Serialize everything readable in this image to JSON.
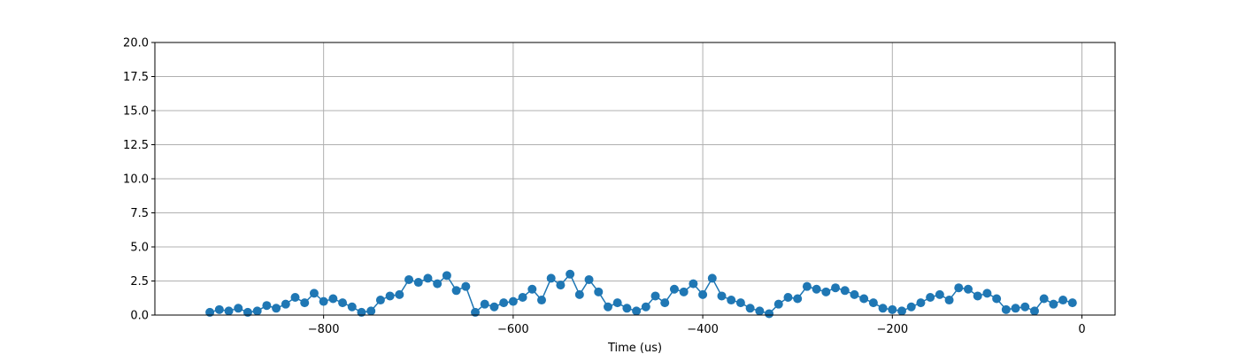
{
  "chart_data": {
    "type": "scatter",
    "title": "",
    "xlabel": "Time (us)",
    "ylabel": "",
    "xlim": [
      -978,
      35
    ],
    "ylim": [
      0,
      20
    ],
    "xticks": [
      -800,
      -600,
      -400,
      -200,
      0
    ],
    "xtick_labels": [
      "−800",
      "−600",
      "−400",
      "−200",
      "0"
    ],
    "yticks": [
      0,
      2.5,
      5,
      7.5,
      10,
      12.5,
      15,
      17.5,
      20
    ],
    "ytick_labels": [
      "0.0",
      "2.5",
      "5.0",
      "7.5",
      "10.0",
      "12.5",
      "15.0",
      "17.5",
      "20.0"
    ],
    "grid": true,
    "marker_color": "#1f77b4",
    "line_color": "#1f77b4",
    "series": [
      {
        "x": [
          -920,
          -910,
          -900,
          -890,
          -880,
          -870,
          -860,
          -850,
          -840,
          -830,
          -820,
          -810,
          -800,
          -790,
          -780,
          -770,
          -760,
          -750,
          -740,
          -730,
          -720,
          -710,
          -700,
          -690,
          -680,
          -670,
          -660,
          -650,
          -640,
          -630,
          -620,
          -610,
          -600,
          -590,
          -580,
          -570,
          -560,
          -550,
          -540,
          -530,
          -520,
          -510,
          -500,
          -490,
          -480,
          -470,
          -460,
          -450,
          -440,
          -430,
          -420,
          -410,
          -400,
          -390,
          -380,
          -370,
          -360,
          -350,
          -340,
          -330,
          -320,
          -310,
          -300,
          -290,
          -280,
          -270,
          -260,
          -250,
          -240,
          -230,
          -220,
          -210,
          -200,
          -190,
          -180,
          -170,
          -160,
          -150,
          -140,
          -130,
          -120,
          -110,
          -100,
          -90,
          -80,
          -70,
          -60,
          -50,
          -40,
          -30,
          -20,
          -10
        ],
        "y": [
          0.2,
          0.4,
          0.3,
          0.5,
          0.2,
          0.3,
          0.7,
          0.5,
          0.8,
          1.3,
          0.9,
          1.6,
          1.0,
          1.2,
          0.9,
          0.6,
          0.2,
          0.3,
          1.1,
          1.4,
          1.5,
          2.6,
          2.4,
          2.7,
          2.3,
          2.9,
          1.8,
          2.1,
          0.2,
          0.8,
          0.6,
          0.9,
          1.0,
          1.3,
          1.9,
          1.1,
          2.7,
          2.2,
          3.0,
          1.5,
          2.6,
          1.7,
          0.6,
          0.9,
          0.5,
          0.3,
          0.6,
          1.4,
          0.9,
          1.9,
          1.7,
          2.3,
          1.5,
          2.7,
          1.4,
          1.1,
          0.9,
          0.5,
          0.3,
          0.1,
          0.8,
          1.3,
          1.2,
          2.1,
          1.9,
          1.7,
          2.0,
          1.8,
          1.5,
          1.2,
          0.9,
          0.5,
          0.4,
          0.3,
          0.6,
          0.9,
          1.3,
          1.5,
          1.1,
          2.0,
          1.9,
          1.4,
          1.6,
          1.2,
          0.4,
          0.5,
          0.6,
          0.3,
          1.2,
          0.8,
          1.1,
          0.9
        ]
      }
    ]
  }
}
